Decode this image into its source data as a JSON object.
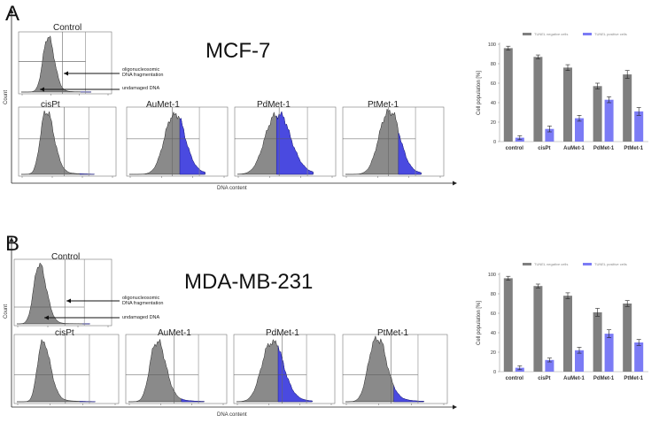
{
  "panels": [
    {
      "letter": "A",
      "cell_line": "MCF-7",
      "y_label": "Count",
      "x_label": "DNA content",
      "annot_fragment": "oligonucleosomic\nDNA fragmentation",
      "annot_undamaged": "undamaged DNA",
      "hist_titles": [
        "Control",
        "cisPt",
        "AuMet-1",
        "PdMet-1",
        "PtMet-1"
      ],
      "shading": [
        0.16,
        0.2,
        0.34,
        0.48,
        0.3
      ]
    },
    {
      "letter": "B",
      "cell_line": "MDA-MB-231",
      "y_label": "Count",
      "x_label": "DNA content",
      "annot_fragment": "oligonucleosomic\nDNA fragmentation",
      "annot_undamaged": "undamaged DNA",
      "hist_titles": [
        "Control",
        "cisPt",
        "AuMet-1",
        "PdMet-1",
        "PtMet-1"
      ],
      "shading": [
        0.1,
        0.2,
        0.3,
        0.45,
        0.38
      ]
    }
  ],
  "chart_data": [
    {
      "type": "bar",
      "categories": [
        "control",
        "cisPt",
        "AuMet-1",
        "PdMet-1",
        "PtMet-1"
      ],
      "series": [
        {
          "name": "TUNEL negative cells",
          "values": [
            96,
            87,
            76,
            57,
            69
          ],
          "errors": [
            2,
            2,
            3,
            3,
            4
          ],
          "color": "#7f7f7f"
        },
        {
          "name": "TUNEL positive cells",
          "values": [
            4,
            13,
            24,
            43,
            31
          ],
          "errors": [
            2,
            3,
            3,
            3,
            4
          ],
          "color": "#7b7bf5"
        }
      ],
      "ylabel": "Cell population [%]",
      "ylim": [
        0,
        100
      ],
      "yticks": [
        0,
        20,
        40,
        60,
        80,
        100
      ],
      "legend_position": "top"
    },
    {
      "type": "bar",
      "categories": [
        "control",
        "cisPt",
        "AuMet-1",
        "PdMet-1",
        "PtMet-1"
      ],
      "series": [
        {
          "name": "TUNEL negative cells",
          "values": [
            96,
            88,
            78,
            61,
            70
          ],
          "errors": [
            2,
            2,
            3,
            4,
            3
          ],
          "color": "#7f7f7f"
        },
        {
          "name": "TUNEL positive cells",
          "values": [
            4,
            12,
            22,
            39,
            30
          ],
          "errors": [
            2,
            2,
            3,
            4,
            3
          ],
          "color": "#7b7bf5"
        }
      ],
      "ylabel": "Cell population [%]",
      "ylim": [
        0,
        100
      ],
      "yticks": [
        0,
        20,
        40,
        60,
        80,
        100
      ],
      "legend_position": "top"
    }
  ]
}
